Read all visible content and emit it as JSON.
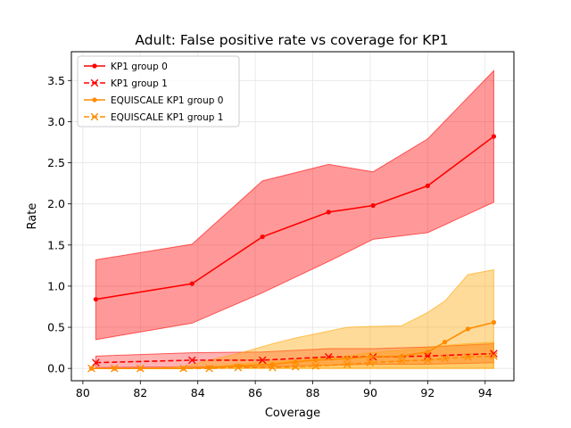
{
  "chart_data": {
    "type": "line",
    "title": "Adult: False positive rate vs coverage for KP1",
    "xlabel": "Coverage",
    "ylabel": "Rate",
    "xlim": [
      79.6,
      95.0
    ],
    "ylim": [
      -0.15,
      3.85
    ],
    "xticks": [
      80,
      82,
      84,
      86,
      88,
      90,
      92,
      94
    ],
    "xtick_labels": [
      "80",
      "82",
      "84",
      "86",
      "88",
      "90",
      "92",
      "94"
    ],
    "yticks": [
      0.0,
      0.5,
      1.0,
      1.5,
      2.0,
      2.5,
      3.0,
      3.5
    ],
    "ytick_labels": [
      "0.0",
      "0.5",
      "1.0",
      "1.5",
      "2.0",
      "2.5",
      "3.0",
      "3.5"
    ],
    "grid": true,
    "legend_position": "top-left",
    "series": [
      {
        "name": "KP1 group 0",
        "color": "#ff0000",
        "band_color": "#ff0000",
        "band_opacity": 0.4,
        "dash": "solid",
        "marker": "dot",
        "x": [
          80.45,
          83.8,
          86.25,
          88.55,
          90.1,
          92.0,
          94.3
        ],
        "y": [
          0.84,
          1.03,
          1.6,
          1.9,
          1.98,
          2.22,
          2.82
        ],
        "lower": [
          0.35,
          0.55,
          0.92,
          1.3,
          1.57,
          1.65,
          2.02
        ],
        "upper": [
          1.32,
          1.51,
          2.28,
          2.48,
          2.39,
          2.79,
          3.62
        ]
      },
      {
        "name": "KP1 group 1",
        "color": "#ff0000",
        "band_color": "#ff0000",
        "band_opacity": 0.3,
        "dash": "dashed",
        "marker": "x",
        "x": [
          80.45,
          83.8,
          86.25,
          88.55,
          90.1,
          92.0,
          94.3
        ],
        "y": [
          0.07,
          0.1,
          0.1,
          0.14,
          0.14,
          0.15,
          0.18
        ],
        "lower": [
          0.01,
          0.02,
          0.02,
          0.04,
          0.05,
          0.05,
          0.07
        ],
        "upper": [
          0.15,
          0.19,
          0.2,
          0.24,
          0.24,
          0.26,
          0.3
        ]
      },
      {
        "name": "EQUISCALE KP1 group 0",
        "color": "#ff8c00",
        "band_color": "#ffa500",
        "band_opacity": 0.4,
        "dash": "solid",
        "marker": "dot",
        "x": [
          80.3,
          81.1,
          82.0,
          83.5,
          84.4,
          85.4,
          86.6,
          87.4,
          88.1,
          89.2,
          90.0,
          91.1,
          92.0,
          92.6,
          93.4,
          94.3
        ],
        "y": [
          0.0,
          0.0,
          0.0,
          0.0,
          0.01,
          0.03,
          0.05,
          0.08,
          0.1,
          0.12,
          0.14,
          0.15,
          0.2,
          0.32,
          0.48,
          0.56
        ],
        "lower": [
          0.0,
          0.0,
          0.0,
          0.0,
          0.0,
          0.0,
          0.0,
          0.0,
          0.0,
          0.0,
          0.0,
          0.0,
          0.0,
          0.0,
          0.0,
          0.0
        ],
        "upper": [
          0.0,
          0.0,
          0.0,
          0.02,
          0.1,
          0.18,
          0.3,
          0.37,
          0.42,
          0.5,
          0.51,
          0.52,
          0.68,
          0.82,
          1.14,
          1.2
        ]
      },
      {
        "name": "EQUISCALE KP1 group 1",
        "color": "#ff8c00",
        "band_color": "#ffa500",
        "band_opacity": 0.3,
        "dash": "dashed",
        "marker": "x",
        "x": [
          80.3,
          81.1,
          82.0,
          83.5,
          84.4,
          85.4,
          86.6,
          87.4,
          88.1,
          89.2,
          90.0,
          91.1,
          92.0,
          92.6,
          93.4,
          94.3
        ],
        "y": [
          0.0,
          0.0,
          0.0,
          0.0,
          0.0,
          0.01,
          0.01,
          0.02,
          0.03,
          0.05,
          0.07,
          0.09,
          0.1,
          0.12,
          0.14,
          0.15
        ],
        "lower": [
          0.0,
          0.0,
          0.0,
          0.0,
          0.0,
          0.0,
          0.0,
          0.0,
          0.0,
          0.0,
          0.0,
          0.0,
          0.0,
          0.0,
          0.0,
          0.0
        ],
        "upper": [
          0.0,
          0.0,
          0.0,
          0.0,
          0.02,
          0.05,
          0.08,
          0.1,
          0.12,
          0.15,
          0.19,
          0.22,
          0.25,
          0.28,
          0.3,
          0.32
        ]
      }
    ]
  }
}
